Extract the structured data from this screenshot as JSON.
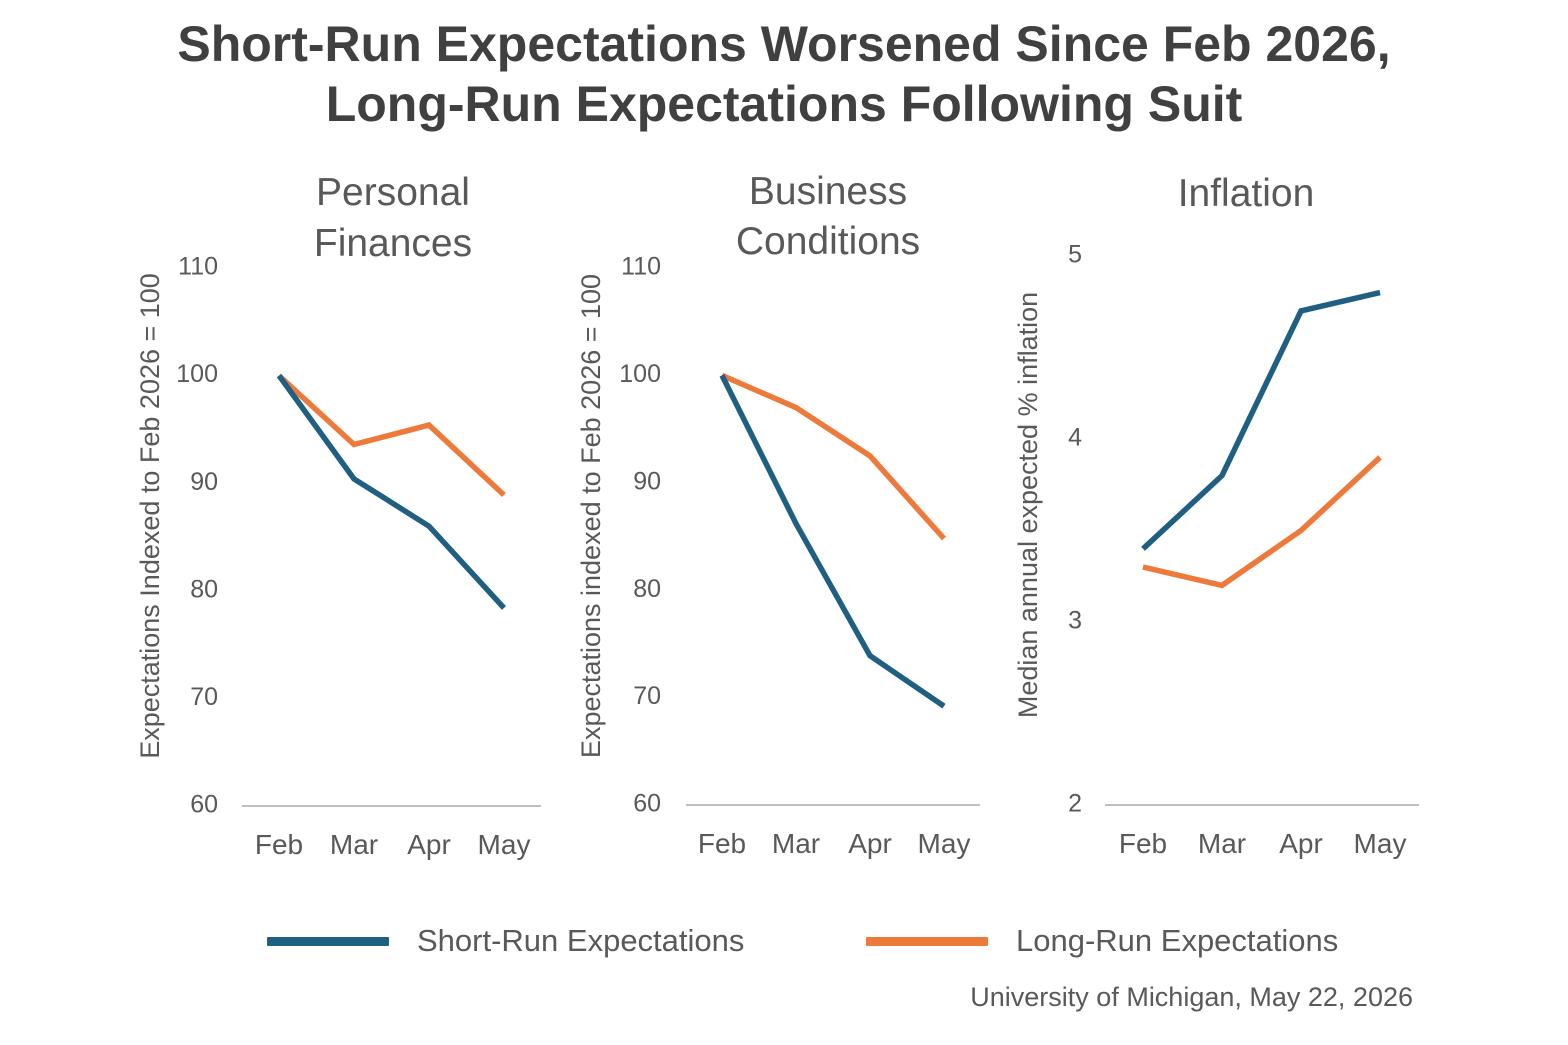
{
  "title": {
    "line1": "Short-Run Expectations Worsened Since Feb 2026,",
    "line2": "Long-Run Expectations Following Suit"
  },
  "colors": {
    "short_run": "#1f5f82",
    "long_run": "#ed7a3a",
    "axis": "#bfbfbf",
    "text": "#595959"
  },
  "legend": [
    {
      "name": "Short-Run Expectations",
      "color": "#1f5f82"
    },
    {
      "name": "Long-Run Expectations",
      "color": "#ed7a3a"
    }
  ],
  "source": "University of Michigan, May 22, 2026",
  "chart_data": [
    {
      "type": "line",
      "title": [
        "Personal",
        "Finances"
      ],
      "categories": [
        "Feb",
        "Mar",
        "Apr",
        "May"
      ],
      "ylabel": "Expectations Indexed to Feb 2026 = 100",
      "ylim": [
        60,
        110
      ],
      "yticks": [
        60,
        70,
        80,
        90,
        100,
        110
      ],
      "grid": false,
      "series": [
        {
          "name": "Short-Run Expectations",
          "values": [
            100,
            90.4,
            86.0,
            78.4
          ]
        },
        {
          "name": "Long-Run Expectations",
          "values": [
            100,
            93.6,
            95.4,
            88.9
          ]
        }
      ]
    },
    {
      "type": "line",
      "title": [
        "Business",
        "Conditions"
      ],
      "categories": [
        "Feb",
        "Mar",
        "Apr",
        "May"
      ],
      "ylabel": "Expectations indexed to Feb 2026 = 100",
      "ylim": [
        60,
        110
      ],
      "yticks": [
        60,
        70,
        80,
        90,
        100,
        110
      ],
      "grid": false,
      "series": [
        {
          "name": "Short-Run Expectations",
          "values": [
            100,
            86.2,
            73.9,
            69.2
          ]
        },
        {
          "name": "Long-Run Expectations",
          "values": [
            100,
            97.0,
            92.5,
            84.8
          ]
        }
      ]
    },
    {
      "type": "line",
      "title": [
        "Inflation"
      ],
      "categories": [
        "Feb",
        "Mar",
        "Apr",
        "May"
      ],
      "ylabel": "Median annual expected % inflation",
      "ylim": [
        2,
        5
      ],
      "yticks": [
        2,
        3,
        4,
        5
      ],
      "grid": false,
      "series": [
        {
          "name": "Short-Run Expectations",
          "values": [
            3.4,
            3.8,
            4.7,
            4.8
          ]
        },
        {
          "name": "Long-Run Expectations",
          "values": [
            3.3,
            3.2,
            3.5,
            3.9
          ]
        }
      ]
    }
  ]
}
